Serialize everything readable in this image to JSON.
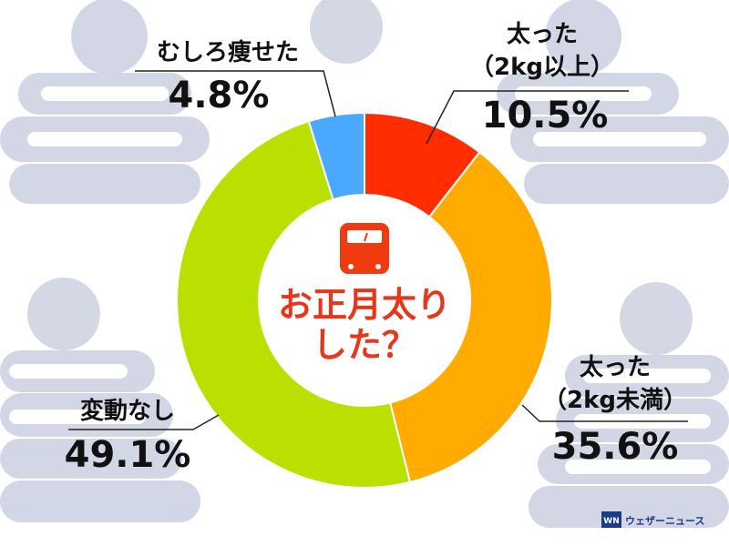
{
  "chart_data": {
    "type": "pie",
    "title_lines": [
      "お正月太り",
      "した？"
    ],
    "slices": [
      {
        "label_lines": [
          "太った",
          "（2kg以上）"
        ],
        "value": 10.5,
        "value_label": "10.5%",
        "color": "#ff2d00"
      },
      {
        "label_lines": [
          "太った",
          "（2kg未満）"
        ],
        "value": 35.6,
        "value_label": "35.6%",
        "color": "#ffab00"
      },
      {
        "label_lines": [
          "変動なし"
        ],
        "value": 49.1,
        "value_label": "49.1%",
        "color": "#b9e000"
      },
      {
        "label_lines": [
          "むしろ痩せた"
        ],
        "value": 4.8,
        "value_label": "4.8%",
        "color": "#4aa8ff"
      }
    ]
  },
  "icon": "bathroom-scale-icon",
  "colors": {
    "background_figures": "#ccd1e1",
    "center_title": "#e8361a",
    "scale_icon": "#f03a10"
  },
  "brand": {
    "name": "ウェザーニュース",
    "mark": "WN"
  }
}
